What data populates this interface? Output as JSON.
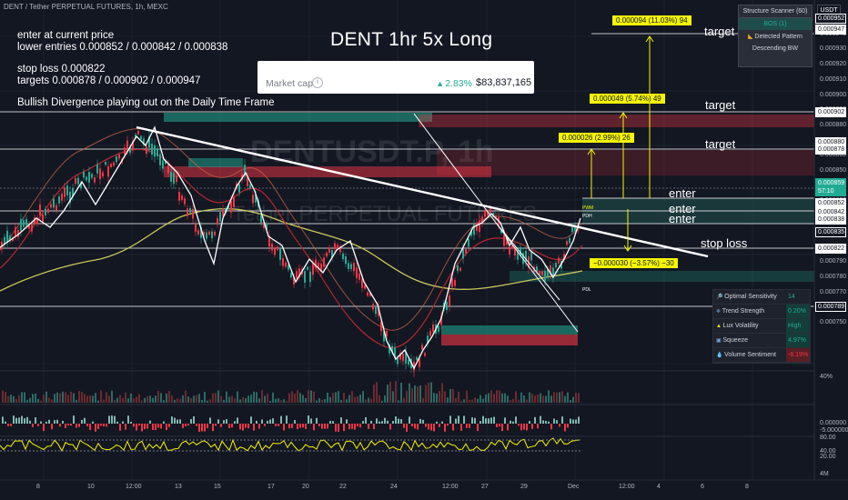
{
  "header": {
    "symbol_line": "DENT / Tether PERPETUAL FUTURES, 1h, MEXC"
  },
  "notes": {
    "line1": "enter at current price",
    "line2": "lower entries 0.000852 / 0.000842  / 0.000838",
    "line3": "stop loss 0.000822",
    "line4": "targets 0.000878 / 0.000902  / 0.000947",
    "line5": "Bullish Divergence playing out on the Daily Time Frame"
  },
  "title": "DENT 1hr 5x Long",
  "market_cap": {
    "label": "Market cap",
    "info_glyph": "i",
    "change": "2.83%",
    "value": "$83,837,165"
  },
  "watermark": {
    "symbol": "DENTUSDT.P, 1h",
    "name": "Tether PERPETUAL FUTURES"
  },
  "chart_labels": {
    "target1": "target",
    "target2": "target",
    "target3": "target",
    "enter1": "enter",
    "enter2": "enter",
    "enter3": "enter",
    "stop": "stop loss",
    "box_t3": "0.000094 (11.03%) 94",
    "box_t2": "0.000049 (5.74%) 49",
    "box_t1": "0.000026 (2.99%) 26",
    "box_sl": "−0.000030 (−3.57%) −30",
    "pwm": "PWM",
    "pdh": "PDH",
    "pdl": "PDL"
  },
  "price_axis": {
    "currency": "USDT",
    "ticks": [
      "0.000950",
      "0.000940",
      "0.000930",
      "0.000920",
      "0.000910",
      "0.000900",
      "0.000890",
      "0.000880",
      "0.000870",
      "0.000860",
      "0.000850",
      "0.000840",
      "0.000830",
      "0.000820",
      "0.000810",
      "0.000800",
      "0.000790",
      "0.000780",
      "0.000770",
      "0.000760",
      "0.000750"
    ],
    "tags": [
      {
        "text": "0.000952",
        "color": "#ffffff",
        "bg": "#131722",
        "border": "#ffffff"
      },
      {
        "text": "0.000947",
        "color": "#131722",
        "bg": "#ffffff",
        "border": "#ffffff"
      },
      {
        "text": "0.000902",
        "color": "#131722",
        "bg": "#ffffff",
        "border": "#ffffff"
      },
      {
        "text": "0.000880",
        "color": "#131722",
        "bg": "#ffffff",
        "border": "#ffffff"
      },
      {
        "text": "0.000878",
        "color": "#131722",
        "bg": "#ffffff",
        "border": "#ffffff"
      },
      {
        "text": "0.000859",
        "color": "#ffffff",
        "bg": "#22ab94",
        "border": "#22ab94"
      },
      {
        "text": "57:10",
        "color": "#ffffff",
        "bg": "#22ab94",
        "border": "#22ab94"
      },
      {
        "text": "0.000852",
        "color": "#131722",
        "bg": "#ffffff",
        "border": "#ffffff"
      },
      {
        "text": "0.000842",
        "color": "#131722",
        "bg": "#ffffff",
        "border": "#ffffff"
      },
      {
        "text": "0.000838",
        "color": "#131722",
        "bg": "#ffffff",
        "border": "#ffffff"
      },
      {
        "text": "0.000835",
        "color": "#ffffff",
        "bg": "#131722",
        "border": "#ffffff"
      },
      {
        "text": "0.000822",
        "color": "#131722",
        "bg": "#ffffff",
        "border": "#ffffff"
      },
      {
        "text": "0.000789",
        "color": "#ffffff",
        "bg": "#131722",
        "border": "#ffffff"
      }
    ],
    "osc_ticks": [
      "40%",
      "0.000000",
      "-5.000000",
      "80.00",
      "40.00",
      "20.00",
      "4M"
    ]
  },
  "time_axis": [
    "8",
    "10",
    "12:00",
    "13",
    "15",
    "17",
    "20",
    "22",
    "24",
    "12:00",
    "27",
    "29",
    "Dec",
    "12:00",
    "4",
    "6",
    "8"
  ],
  "scanner": {
    "title": "Structure Scanner (60)",
    "item1": "BOS (1)",
    "item2": "Detected Pattern",
    "item3": "Descending BW"
  },
  "oscillator_table": [
    {
      "name": "Optimal Sensitivity",
      "value": "14",
      "vbg": "#1e222d",
      "vcolor": "#22ab94"
    },
    {
      "name": "Trend Strength",
      "value": "0.20%",
      "vbg": "#133e39",
      "vcolor": "#22ab94"
    },
    {
      "name": "Lux Volatility",
      "value": "High",
      "vbg": "#133e39",
      "vcolor": "#22ab94"
    },
    {
      "name": "Squeeze",
      "value": "4.97%",
      "vbg": "#133e39",
      "vcolor": "#22ab94"
    },
    {
      "name": "Volume Sentiment",
      "value": "-6.19%",
      "vbg": "#5a1e25",
      "vcolor": "#f23645"
    }
  ],
  "colors": {
    "bull": "#22ab94",
    "bear": "#f23645",
    "yellow": "#f5f500",
    "ma": "#c8c85a",
    "bg": "#131722"
  }
}
